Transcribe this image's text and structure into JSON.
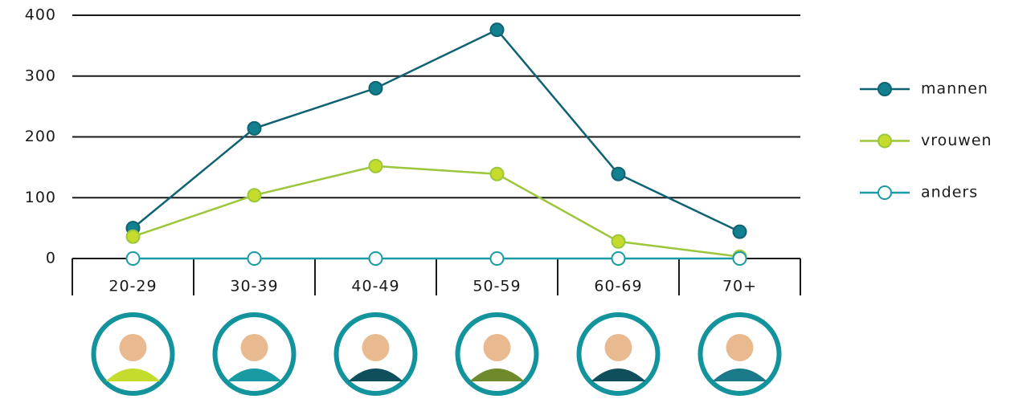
{
  "chart_data": {
    "type": "line",
    "categories": [
      "20-29",
      "30-39",
      "40-49",
      "50-59",
      "60-69",
      "70+"
    ],
    "series": [
      {
        "name": "mannen",
        "color": "#0f6272",
        "marker_color": "#13808f",
        "marker_fill": "filled",
        "values": [
          50,
          214,
          280,
          376,
          139,
          44
        ]
      },
      {
        "name": "vrouwen",
        "color": "#9cc63c",
        "marker_color": "#c5dc2c",
        "marker_fill": "filled",
        "values": [
          36,
          104,
          152,
          139,
          28,
          3
        ]
      },
      {
        "name": "anders",
        "color": "#1a9aa3",
        "marker_color": "#ffffff",
        "marker_fill": "open",
        "values": [
          0,
          0,
          0,
          0,
          0,
          0
        ]
      }
    ],
    "ylim": [
      0,
      400
    ],
    "yticks": [
      0,
      100,
      200,
      300,
      400
    ],
    "grid": true,
    "legend": "right"
  }
}
